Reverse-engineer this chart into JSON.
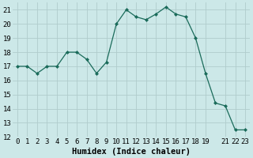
{
  "x": [
    0,
    1,
    2,
    3,
    4,
    5,
    6,
    7,
    8,
    9,
    10,
    11,
    12,
    13,
    14,
    15,
    16,
    17,
    18,
    19,
    20,
    21,
    22,
    23
  ],
  "y": [
    17.0,
    17.0,
    16.5,
    17.0,
    17.0,
    18.0,
    18.0,
    17.5,
    16.5,
    17.3,
    20.0,
    21.0,
    20.5,
    20.3,
    20.7,
    21.2,
    20.7,
    20.5,
    19.0,
    16.5,
    14.4,
    14.2,
    12.5,
    12.5
  ],
  "line_color": "#1a6b5a",
  "marker": "D",
  "marker_size": 2.0,
  "background_color": "#cce8e8",
  "grid_color": "#b0cccc",
  "xlabel": "Humidex (Indice chaleur)",
  "xlabel_fontsize": 7.5,
  "tick_fontsize": 6.5,
  "ylim": [
    12,
    21.5
  ],
  "xlim": [
    -0.5,
    23.5
  ],
  "yticks": [
    12,
    13,
    14,
    15,
    16,
    17,
    18,
    19,
    20,
    21
  ],
  "xticks": [
    0,
    1,
    2,
    3,
    4,
    5,
    6,
    7,
    8,
    9,
    10,
    11,
    12,
    13,
    14,
    15,
    16,
    17,
    18,
    19,
    21,
    22,
    23
  ],
  "xticklabels": [
    "0",
    "1",
    "2",
    "3",
    "4",
    "5",
    "6",
    "7",
    "8",
    "9",
    "10",
    "11",
    "12",
    "13",
    "14",
    "15",
    "16",
    "17",
    "18",
    "19",
    "21",
    "22",
    "23"
  ]
}
